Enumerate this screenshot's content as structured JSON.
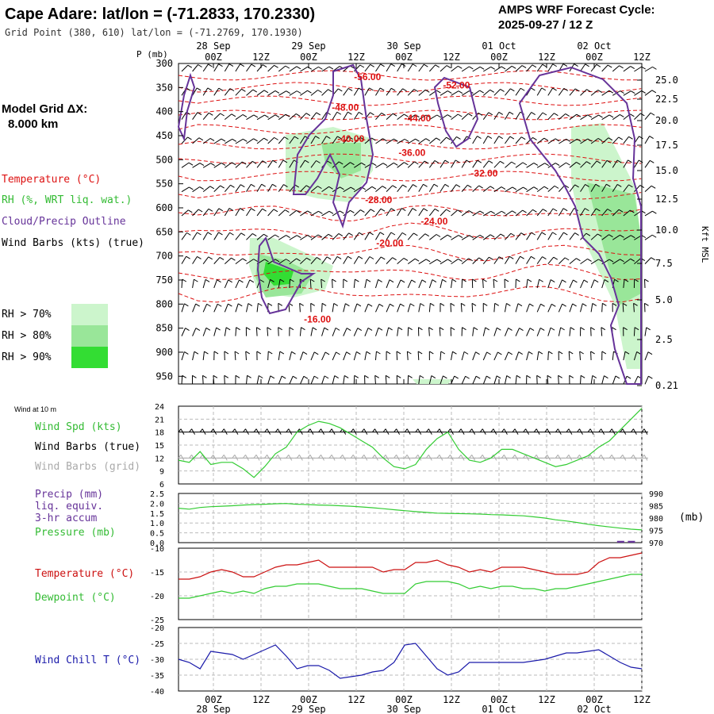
{
  "header": {
    "title": "Cape Adare:  lat/lon = (-71.2833, 170.2330)",
    "subtitle": "Grid Point (380, 610) lat/lon = (-71.2769, 170.1930)",
    "cycle_line1": "AMPS WRF Forecast Cycle:",
    "cycle_line2": "2025-09-27 / 12  Z"
  },
  "legend": {
    "model_grid_label": "Model Grid ΔX:",
    "model_grid_value": "8.000 km",
    "temperature": "Temperature (°C)",
    "rh": "RH (%, WRT liq. wat.)",
    "cloud": "Cloud/Precip Outline",
    "wind": "Wind Barbs (kts) (true)",
    "rh70": "RH > 70%",
    "rh80": "RH > 80%",
    "rh90": "RH > 90%"
  },
  "colors": {
    "temperature": "#dd1111",
    "rh70": "#ccf5cc",
    "rh80": "#99e699",
    "rh90": "#33dd33",
    "cloud": "#663399",
    "wind": "#000000",
    "wind_grid": "#aaaaaa",
    "windspd": "#33cc33",
    "pressure": "#33cc33",
    "precip": "#663399",
    "tline": "#cc1111",
    "dewpoint": "#33cc33",
    "windchill": "#1a1aaa"
  },
  "time_axis": {
    "p_label": "P (mb)",
    "hours": [
      "00Z",
      "12Z",
      "00Z",
      "12Z",
      "00Z",
      "12Z",
      "00Z",
      "12Z",
      "00Z",
      "12Z"
    ],
    "dates": [
      "28 Sep",
      "29 Sep",
      "30 Sep",
      "01 Oct",
      "02 Oct"
    ]
  },
  "chart_data": [
    {
      "type": "heatmap",
      "title": "",
      "xlabel": "",
      "ylabel": "P (mb)",
      "y2label": "Kft MSL",
      "pressure_ticks": [
        "300",
        "350",
        "400",
        "450",
        "500",
        "550",
        "600",
        "650",
        "700",
        "750",
        "800",
        "850",
        "900",
        "950"
      ],
      "kft_ticks": [
        "25.0",
        "22.5",
        "20.0",
        "17.5",
        "15.0",
        "12.5",
        "10.0",
        "7.5",
        "5.0",
        "2.5",
        "0.21"
      ],
      "temp_labels": [
        {
          "text": "-56.00",
          "t": 34,
          "p": 335
        },
        {
          "text": "-52.00",
          "t": 50,
          "p": 352
        },
        {
          "text": "-48.00",
          "t": 30,
          "p": 398
        },
        {
          "text": "-44.00",
          "t": 43,
          "p": 420
        },
        {
          "text": "-40.00",
          "t": 31,
          "p": 463
        },
        {
          "text": "-36.00",
          "t": 42,
          "p": 492
        },
        {
          "text": "-32.00",
          "t": 55,
          "p": 535
        },
        {
          "text": "-28.00",
          "t": 36,
          "p": 590
        },
        {
          "text": "-24.00",
          "t": 46,
          "p": 635
        },
        {
          "text": "-20.00",
          "t": 38,
          "p": 680
        },
        {
          "text": "-16.00",
          "t": 25,
          "p": 838
        }
      ]
    },
    {
      "type": "line",
      "title": "Wind at 10 m",
      "series": [
        {
          "name": "Wind Spd (kts)",
          "values": [
            11.5,
            11,
            13.5,
            10.5,
            11,
            11,
            9.5,
            7.5,
            10,
            13,
            14.5,
            18,
            19.5,
            20.5,
            20,
            19,
            17.5,
            16,
            14.5,
            12,
            10,
            9.5,
            10.5,
            14,
            16.5,
            18,
            14,
            11.5,
            11,
            12,
            14,
            14,
            13,
            12,
            11,
            10,
            10.5,
            11.5,
            12.5,
            14.5,
            16,
            18.5,
            21,
            23.5
          ]
        },
        {
          "name": "Wind Barbs (true)",
          "values": [
            18,
            18,
            18,
            18,
            18,
            18,
            18,
            18,
            18,
            18,
            18,
            18,
            18,
            18,
            18,
            18,
            18,
            18,
            18,
            18,
            18,
            18,
            18,
            18,
            18,
            18,
            18,
            18,
            18,
            18,
            18,
            18,
            18,
            18,
            18,
            18,
            18,
            18,
            18,
            18,
            18,
            18,
            18,
            18
          ]
        },
        {
          "name": "Wind Barbs (grid)",
          "values": [
            12,
            12,
            12,
            12,
            12,
            12,
            12,
            12,
            12,
            12,
            12,
            12,
            12,
            12,
            12,
            12,
            12,
            12,
            12,
            12,
            12,
            12,
            12,
            12,
            12,
            12,
            12,
            12,
            12,
            12,
            12,
            12,
            12,
            12,
            12,
            12,
            12,
            12,
            12,
            12,
            12,
            12,
            12,
            12
          ]
        }
      ],
      "ylim": [
        6,
        24
      ],
      "yticks": [
        "24",
        "21",
        "18",
        "15",
        "12",
        "9",
        "6"
      ]
    },
    {
      "type": "line",
      "series": [
        {
          "name": "Precip (mm) liq. equiv. 3-hr accum",
          "values": [
            0,
            0,
            0,
            0,
            0,
            0,
            0,
            0,
            0,
            0,
            0,
            0,
            0,
            0,
            0,
            0,
            0,
            0,
            0,
            0,
            0,
            0,
            0,
            0,
            0,
            0,
            0,
            0,
            0,
            0,
            0,
            0,
            0,
            0,
            0,
            0,
            0,
            0,
            0,
            0,
            0,
            0.05,
            0.05,
            0
          ]
        },
        {
          "name": "Pressure (mb)",
          "values": [
            984,
            983.6,
            984.3,
            984.6,
            984.8,
            985,
            985.3,
            985.5,
            985.6,
            985.8,
            985.9,
            985.6,
            985.5,
            985.3,
            985.2,
            985,
            984.8,
            984.5,
            984.2,
            983.8,
            983.4,
            983,
            982.6,
            982.3,
            982,
            981.9,
            981.8,
            981.7,
            981.6,
            981.4,
            981.3,
            981.1,
            980.9,
            980.5,
            980,
            979.3,
            978.8,
            978.2,
            977.5,
            976.9,
            976.4,
            975.9,
            975.5,
            975.2
          ]
        }
      ],
      "ylim": [
        0,
        2.5
      ],
      "yticks": [
        "2.5",
        "2.0",
        "1.5",
        "1.0",
        "0.5",
        "0.0"
      ],
      "y2lim": [
        970,
        990
      ],
      "y2ticks": [
        "990",
        "985",
        "980",
        "975",
        "970"
      ],
      "y2label": "(mb)"
    },
    {
      "type": "line",
      "series": [
        {
          "name": "Temperature (°C)",
          "values": [
            -16.5,
            -16.5,
            -16,
            -15,
            -14.5,
            -15,
            -16,
            -16,
            -15,
            -14,
            -13.5,
            -13.5,
            -13,
            -12.5,
            -14,
            -14,
            -14,
            -14,
            -14,
            -15,
            -14.5,
            -14.5,
            -13,
            -13,
            -12.5,
            -13.5,
            -14,
            -15,
            -14.5,
            -15,
            -14,
            -14,
            -14,
            -14.5,
            -15,
            -15.5,
            -15.5,
            -15.5,
            -15,
            -13,
            -12,
            -12,
            -11.5,
            -11
          ]
        },
        {
          "name": "Dewpoint (°C)",
          "values": [
            -20.5,
            -20.5,
            -20,
            -19.5,
            -19,
            -19.5,
            -19,
            -19.5,
            -18.5,
            -18,
            -18,
            -17.5,
            -17.5,
            -17.5,
            -18,
            -18.5,
            -18.5,
            -18.5,
            -19,
            -19.5,
            -19.5,
            -19.5,
            -17.5,
            -17,
            -17,
            -17,
            -17.5,
            -18.5,
            -18,
            -18.5,
            -18,
            -18,
            -18.5,
            -18.5,
            -19,
            -18.5,
            -18.5,
            -18,
            -17.5,
            -17,
            -16.5,
            -16,
            -15.5,
            -15.5
          ]
        }
      ],
      "ylim": [
        -25,
        -10
      ],
      "yticks": [
        "-10",
        "-15",
        "-20",
        "-25"
      ]
    },
    {
      "type": "line",
      "series": [
        {
          "name": "Wind Chill T (°C)",
          "values": [
            -30,
            -31,
            -33,
            -27.5,
            -28,
            -28.5,
            -30,
            -28.5,
            -27,
            -25.5,
            -29,
            -33,
            -32,
            -32,
            -33.5,
            -36,
            -35.5,
            -35,
            -34,
            -33.5,
            -31,
            -25.5,
            -25,
            -29,
            -33,
            -35,
            -34,
            -31,
            -31,
            -31,
            -31,
            -31,
            -31,
            -30.5,
            -30,
            -29,
            -28,
            -28,
            -27.5,
            -27,
            -29,
            -31,
            -32.5,
            -33
          ]
        }
      ],
      "ylim": [
        -40,
        -20
      ],
      "yticks": [
        "-20",
        "-25",
        "-30",
        "-35",
        "-40"
      ]
    }
  ],
  "panels": {
    "wind_title": "Wind at 10 m",
    "wind_spd": "Wind Spd (kts)",
    "wind_true": "Wind Barbs (true)",
    "wind_grid": "Wind Barbs (grid)",
    "precip1": "Precip (mm)",
    "precip2": "liq. equiv.",
    "precip3": "3-hr accum",
    "pressure": "Pressure (mb)",
    "temperature": "Temperature (°C)",
    "dewpoint": "Dewpoint (°C)",
    "windchill": "Wind Chill T (°C)"
  }
}
